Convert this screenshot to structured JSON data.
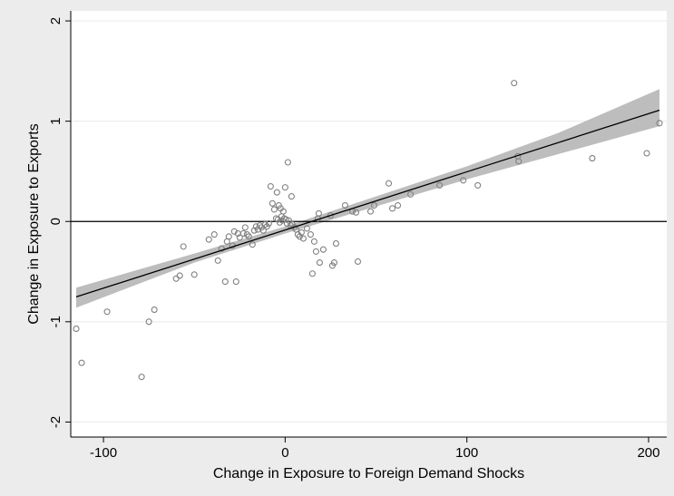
{
  "chart_data": {
    "type": "scatter",
    "title": "",
    "xlabel": "Change in Exposure to Foreign Demand Shocks",
    "ylabel": "Change in Exposure to Exports",
    "xlim": [
      -118,
      210
    ],
    "ylim": [
      -2.15,
      2.1
    ],
    "xticks": [
      -100,
      0,
      100,
      200
    ],
    "xtick_labels": [
      "-100",
      "0",
      "100",
      "200"
    ],
    "yticks": [
      -2,
      -1,
      0,
      1,
      2
    ],
    "ytick_labels": [
      "-2",
      "-1",
      "0",
      "1",
      "2"
    ],
    "grid": "horizontal",
    "legend": "none",
    "colors": {
      "background": "#ececec",
      "plot_area": "#ffffff",
      "gridline": "#eaeaea",
      "points": "#808080",
      "fit_line": "#000000",
      "confidence_band": "#bdbdbd",
      "zero_line": "#000000"
    },
    "reference_line": {
      "y": 0
    },
    "fit": {
      "slope": 0.0058,
      "intercept": -0.085,
      "x_range": [
        -115,
        206
      ],
      "ci": [
        {
          "x": -115,
          "lo": -0.86,
          "hi": -0.66
        },
        {
          "x": -50,
          "lo": -0.41,
          "hi": -0.32
        },
        {
          "x": 0,
          "lo": -0.12,
          "hi": -0.05
        },
        {
          "x": 50,
          "lo": 0.15,
          "hi": 0.25
        },
        {
          "x": 100,
          "lo": 0.42,
          "hi": 0.55
        },
        {
          "x": 150,
          "lo": 0.67,
          "hi": 0.88
        },
        {
          "x": 206,
          "lo": 0.95,
          "hi": 1.32
        }
      ]
    },
    "points": [
      [
        -115,
        -1.07
      ],
      [
        -112,
        -1.41
      ],
      [
        -98,
        -0.9
      ],
      [
        -79,
        -1.55
      ],
      [
        -75,
        -1.0
      ],
      [
        -72,
        -0.88
      ],
      [
        -60,
        -0.57
      ],
      [
        -58,
        -0.54
      ],
      [
        -56,
        -0.25
      ],
      [
        -50,
        -0.53
      ],
      [
        -42,
        -0.18
      ],
      [
        -39,
        -0.13
      ],
      [
        -37,
        -0.39
      ],
      [
        -35,
        -0.27
      ],
      [
        -33,
        -0.6
      ],
      [
        -32,
        -0.2
      ],
      [
        -31,
        -0.15
      ],
      [
        -29,
        -0.24
      ],
      [
        -28,
        -0.1
      ],
      [
        -27,
        -0.6
      ],
      [
        -26,
        -0.12
      ],
      [
        -25,
        -0.16
      ],
      [
        -23,
        -0.12
      ],
      [
        -22,
        -0.06
      ],
      [
        -21,
        -0.13
      ],
      [
        -20,
        -0.15
      ],
      [
        -18,
        -0.23
      ],
      [
        -17,
        -0.09
      ],
      [
        -16,
        -0.05
      ],
      [
        -15,
        -0.08
      ],
      [
        -14,
        -0.04
      ],
      [
        -13,
        -0.06
      ],
      [
        -12,
        -0.09
      ],
      [
        -11,
        -0.03
      ],
      [
        -10,
        -0.05
      ],
      [
        -9,
        -0.02
      ],
      [
        -8,
        0.35
      ],
      [
        -7,
        0.18
      ],
      [
        -6,
        0.12
      ],
      [
        -5,
        0.03
      ],
      [
        -4.5,
        0.29
      ],
      [
        -4,
        0.02
      ],
      [
        -3.5,
        0.16
      ],
      [
        -3,
        -0.01
      ],
      [
        -2.5,
        0.13
      ],
      [
        -2,
        0.05
      ],
      [
        -1.5,
        0.01
      ],
      [
        -1,
        0.1
      ],
      [
        -0.5,
        0.03
      ],
      [
        0,
        0.34
      ],
      [
        0.5,
        0.02
      ],
      [
        1,
        -0.02
      ],
      [
        1.5,
        0.59
      ],
      [
        2,
        0.01
      ],
      [
        3,
        -0.04
      ],
      [
        3.5,
        0.25
      ],
      [
        4,
        -0.03
      ],
      [
        5,
        -0.06
      ],
      [
        6,
        -0.08
      ],
      [
        7,
        -0.13
      ],
      [
        8,
        -0.15
      ],
      [
        9,
        -0.11
      ],
      [
        10,
        -0.17
      ],
      [
        12,
        -0.07
      ],
      [
        14,
        -0.13
      ],
      [
        15,
        -0.52
      ],
      [
        16,
        -0.2
      ],
      [
        17,
        -0.3
      ],
      [
        18,
        0.03
      ],
      [
        18.5,
        0.08
      ],
      [
        19,
        -0.41
      ],
      [
        21,
        -0.28
      ],
      [
        25,
        0.06
      ],
      [
        26,
        -0.44
      ],
      [
        27,
        -0.41
      ],
      [
        28,
        -0.22
      ],
      [
        33,
        0.16
      ],
      [
        37,
        0.1
      ],
      [
        39,
        0.09
      ],
      [
        40,
        -0.4
      ],
      [
        47,
        0.1
      ],
      [
        49,
        0.16
      ],
      [
        57,
        0.38
      ],
      [
        59,
        0.13
      ],
      [
        62,
        0.16
      ],
      [
        69,
        0.27
      ],
      [
        85,
        0.36
      ],
      [
        98,
        0.41
      ],
      [
        106,
        0.36
      ],
      [
        126,
        1.38
      ],
      [
        128,
        0.65
      ],
      [
        128.5,
        0.6
      ],
      [
        169,
        0.63
      ],
      [
        199,
        0.68
      ],
      [
        206,
        0.98
      ]
    ]
  }
}
